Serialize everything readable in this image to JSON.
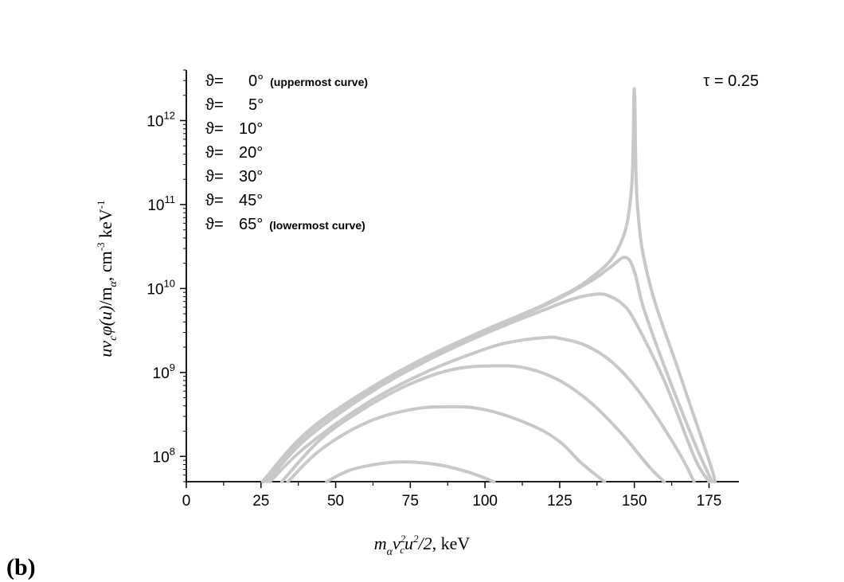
{
  "panel_label": "(b)",
  "chart_data": {
    "type": "line",
    "annotation": "τ = 0.25",
    "xlabel": "mαvc²u²/2, keV",
    "ylabel": "uvcφ(u)/mα, cm⁻³ keV⁻¹",
    "xlim": [
      0,
      185
    ],
    "ylim": [
      50000000,
      4000000000000
    ],
    "yscale": "log",
    "x_ticks": [
      0,
      25,
      50,
      75,
      100,
      125,
      150,
      175
    ],
    "y_ticks": [
      100000000,
      1000000000,
      10000000000,
      100000000000,
      1000000000000
    ],
    "y_tick_exponents": [
      "8",
      "9",
      "10",
      "11",
      "12"
    ],
    "y_tick_base": "10",
    "legend": [
      {
        "symbol": "ϑ=",
        "angle": "0°",
        "note": "(uppermost curve)"
      },
      {
        "symbol": "ϑ=",
        "angle": "5°",
        "note": ""
      },
      {
        "symbol": "ϑ=",
        "angle": "10°",
        "note": ""
      },
      {
        "symbol": "ϑ=",
        "angle": "20°",
        "note": ""
      },
      {
        "symbol": "ϑ=",
        "angle": "30°",
        "note": ""
      },
      {
        "symbol": "ϑ=",
        "angle": "45°",
        "note": ""
      },
      {
        "symbol": "ϑ=",
        "angle": "65°",
        "note": "(lowermost curve)"
      }
    ],
    "line_color": "#c8c8c8",
    "series": [
      {
        "angle": 0,
        "x": [
          25.5,
          40,
          60,
          80,
          100,
          120,
          135,
          145,
          149,
          150,
          151,
          155,
          165,
          175,
          177
        ],
        "y": [
          50000000.0,
          190000000.0,
          600000000.0,
          1500000000.0,
          3200000000.0,
          6500000000.0,
          13000000000.0,
          32000000000.0,
          150000000000.0,
          2400000000000.0,
          100000000000.0,
          12000000000.0,
          1000000000.0,
          90000000.0,
          50000000.0
        ]
      },
      {
        "angle": 5,
        "x": [
          26,
          40,
          60,
          80,
          100,
          120,
          135,
          142,
          147,
          150,
          153,
          160,
          170,
          176
        ],
        "y": [
          50000000.0,
          180000000.0,
          580000000.0,
          1450000000.0,
          3100000000.0,
          6300000000.0,
          12000000000.0,
          18000000000.0,
          23500000000.0,
          16000000000.0,
          6000000000.0,
          1200000000.0,
          150000000.0,
          50000000.0
        ]
      },
      {
        "angle": 10,
        "x": [
          27,
          40,
          60,
          80,
          100,
          120,
          130,
          138,
          142,
          146,
          150,
          160,
          170,
          175
        ],
        "y": [
          50000000.0,
          160000000.0,
          530000000.0,
          1350000000.0,
          2900000000.0,
          5600000000.0,
          7600000000.0,
          8600000000.0,
          8000000000.0,
          6500000000.0,
          4200000000.0,
          800000000.0,
          100000000.0,
          50000000.0
        ]
      },
      {
        "angle": 20,
        "x": [
          28,
          40,
          60,
          80,
          100,
          110,
          120,
          125,
          135,
          145,
          155,
          165,
          170
        ],
        "y": [
          50000000.0,
          130000000.0,
          420000000.0,
          1000000000.0,
          1900000000.0,
          2350000000.0,
          2600000000.0,
          2550000000.0,
          2000000000.0,
          1100000000.0,
          400000000.0,
          110000000.0,
          50000000.0
        ]
      },
      {
        "angle": 30,
        "x": [
          32,
          45,
          60,
          75,
          90,
          105,
          115,
          125,
          135,
          145,
          155,
          160
        ],
        "y": [
          50000000.0,
          160000000.0,
          380000000.0,
          730000000.0,
          1100000000.0,
          1200000000.0,
          1100000000.0,
          800000000.0,
          450000000.0,
          200000000.0,
          75000000.0,
          50000000.0
        ]
      },
      {
        "angle": 45,
        "x": [
          34,
          45,
          60,
          75,
          88,
          100,
          115,
          125,
          132,
          140
        ],
        "y": [
          50000000.0,
          120000000.0,
          250000000.0,
          360000000.0,
          390000000.0,
          360000000.0,
          240000000.0,
          150000000.0,
          85000000.0,
          50000000.0
        ]
      },
      {
        "angle": 65,
        "x": [
          47,
          55,
          65,
          74,
          85,
          95,
          103
        ],
        "y": [
          50000000.0,
          69000000.0,
          82000000.0,
          86000000.0,
          79000000.0,
          64000000.0,
          50000000.0
        ]
      }
    ]
  }
}
